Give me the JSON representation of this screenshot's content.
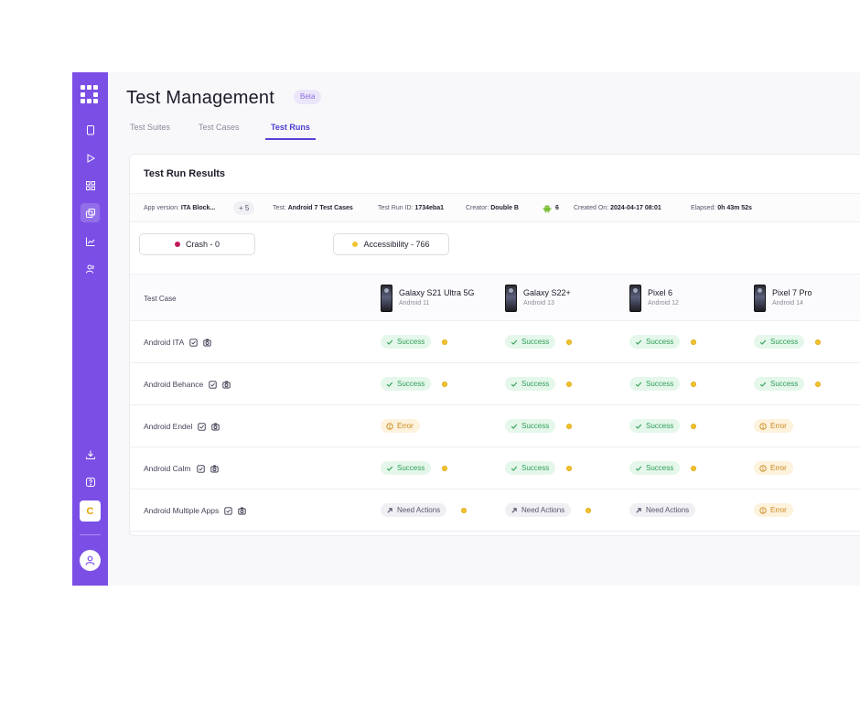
{
  "app": {
    "title": "Test Management",
    "beta_label": "Beta",
    "avatar_letter": "C"
  },
  "tabs": [
    {
      "label": "Test Suites",
      "active": false
    },
    {
      "label": "Test Cases",
      "active": false
    },
    {
      "label": "Test Runs",
      "active": true
    }
  ],
  "card": {
    "title": "Test Run Results",
    "meta": {
      "app_version_label": "App version:",
      "app_version_value": "ITA Block...",
      "extra_count": "+ 5",
      "test_label": "Test:",
      "test_value": "Android 7 Test Cases",
      "run_id_label": "Test Run ID:",
      "run_id_value": "1734eba1",
      "creator_label": "Creator:",
      "creator_value": "Double B",
      "android_count": "6",
      "created_label": "Created On:",
      "created_value": "2024-04-17 08:01",
      "elapsed_label": "Elapsed:",
      "elapsed_value": "0h 43m 52s"
    },
    "filters": [
      {
        "label": "Crash - 0",
        "dot_color": "#c2185b"
      },
      {
        "label": "Accessibility - 766",
        "dot_color": "#f2c331"
      }
    ]
  },
  "table": {
    "case_header": "Test Case",
    "devices": [
      {
        "name": "Galaxy S21 Ultra 5G",
        "os": "Android 11"
      },
      {
        "name": "Galaxy S22+",
        "os": "Android 13"
      },
      {
        "name": "Pixel 6",
        "os": "Android 12"
      },
      {
        "name": "Pixel 7 Pro",
        "os": "Android 14"
      }
    ],
    "rows": [
      {
        "name": "Android ITA",
        "results": [
          {
            "status": "success",
            "label": "Success",
            "dot": true
          },
          {
            "status": "success",
            "label": "Success",
            "dot": true
          },
          {
            "status": "success",
            "label": "Success",
            "dot": true
          },
          {
            "status": "success",
            "label": "Success",
            "dot": true
          }
        ]
      },
      {
        "name": "Android Behance",
        "results": [
          {
            "status": "success",
            "label": "Success",
            "dot": true
          },
          {
            "status": "success",
            "label": "Success",
            "dot": true
          },
          {
            "status": "success",
            "label": "Success",
            "dot": true
          },
          {
            "status": "success",
            "label": "Success",
            "dot": true
          }
        ]
      },
      {
        "name": "Android Endel",
        "results": [
          {
            "status": "error",
            "label": "Error",
            "dot": false
          },
          {
            "status": "success",
            "label": "Success",
            "dot": true
          },
          {
            "status": "success",
            "label": "Success",
            "dot": true
          },
          {
            "status": "error",
            "label": "Error",
            "dot": false
          }
        ]
      },
      {
        "name": "Android Calm",
        "results": [
          {
            "status": "success",
            "label": "Success",
            "dot": true
          },
          {
            "status": "success",
            "label": "Success",
            "dot": true
          },
          {
            "status": "success",
            "label": "Success",
            "dot": true
          },
          {
            "status": "error",
            "label": "Error",
            "dot": false
          }
        ]
      },
      {
        "name": "Android Multiple Apps",
        "results": [
          {
            "status": "need",
            "label": "Need Actions",
            "dot": true
          },
          {
            "status": "need",
            "label": "Need Actions",
            "dot": true
          },
          {
            "status": "need",
            "label": "Need Actions",
            "dot": false
          },
          {
            "status": "error",
            "label": "Error",
            "dot": false
          }
        ]
      }
    ]
  },
  "colors": {
    "sidebar": "#7b4fe6",
    "accent": "#5840d8",
    "success": "#2f9e58",
    "error": "#c9871a"
  }
}
